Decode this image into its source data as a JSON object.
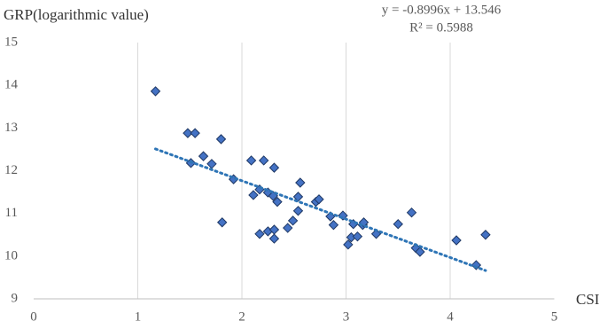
{
  "chart_data": {
    "type": "scatter",
    "title": "GRP(logarithmic value)",
    "x_label": "CSI",
    "annotations": [
      "y = -0.8996x + 13.546",
      "R² = 0.5988"
    ],
    "series": [
      {
        "color": "#4472c4",
        "x": [
          1.17,
          1.48,
          1.55,
          1.51,
          1.63,
          1.71,
          1.8,
          1.81,
          1.92,
          2.09,
          2.21,
          2.31,
          2.11,
          2.17,
          2.25,
          2.3,
          2.34,
          2.17,
          2.25,
          2.31,
          2.31,
          2.44,
          2.49,
          2.54,
          2.54,
          2.56,
          2.71,
          2.74,
          2.85,
          2.88,
          2.97,
          3.02,
          3.05,
          3.07,
          3.11,
          3.16,
          3.17,
          3.29,
          3.5,
          3.63,
          3.67,
          3.71,
          4.06,
          4.25,
          4.34
        ],
        "values": [
          13.86,
          12.88,
          12.88,
          12.18,
          12.34,
          12.16,
          12.74,
          10.79,
          11.8,
          12.24,
          12.24,
          12.07,
          11.43,
          11.56,
          11.49,
          11.41,
          11.27,
          10.52,
          10.58,
          10.62,
          10.41,
          10.66,
          10.83,
          11.06,
          11.39,
          11.72,
          11.27,
          11.33,
          10.93,
          10.73,
          10.95,
          10.27,
          10.44,
          10.75,
          10.46,
          10.73,
          10.79,
          10.52,
          10.75,
          11.02,
          10.19,
          10.1,
          10.37,
          9.79,
          10.5
        ]
      }
    ],
    "trendline": {
      "type": "linear",
      "color": "#2e75b6"
    },
    "xlim": [
      0,
      5
    ],
    "xticks": [
      0,
      1,
      2,
      3,
      4,
      5
    ],
    "ylim": [
      9,
      15
    ],
    "yticks": [
      9,
      10,
      11,
      12,
      13,
      14,
      15
    ],
    "grid": "x"
  }
}
